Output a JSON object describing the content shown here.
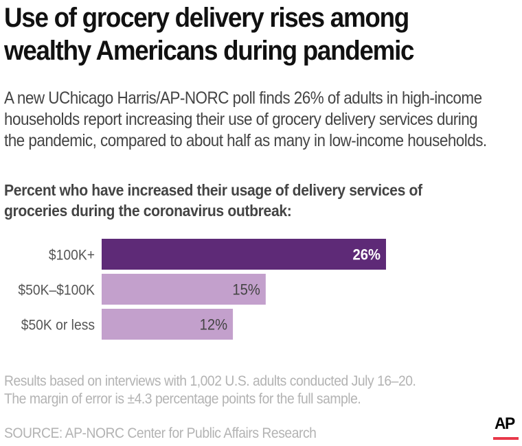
{
  "title_lines": [
    "Use of grocery delivery rises among",
    "wealthy Americans during pandemic"
  ],
  "subtitle_lines": [
    "A new UChicago Harris/AP-NORC poll finds 26% of adults in high-income",
    "households report increasing their use of grocery delivery services during",
    "the pandemic, compared to about half as many in low-income households."
  ],
  "chart_heading_lines": [
    "Percent who have increased their usage of delivery services of",
    "groceries during the coronavirus outbreak:"
  ],
  "chart_data": {
    "type": "bar",
    "orientation": "horizontal",
    "title": "Percent who have increased their usage of delivery services of groceries during the coronavirus outbreak:",
    "categories": [
      "$100K+",
      "$50K–$100K",
      "$50K or less"
    ],
    "values": [
      26,
      15,
      12
    ],
    "value_labels": [
      "26%",
      "15%",
      "12%"
    ],
    "unit": "%",
    "xlabel": "",
    "ylabel": "",
    "xlim": [
      0,
      26
    ],
    "grid": false,
    "legend": "none",
    "colors": [
      "#5E2A77",
      "#C3A0CC",
      "#C3A0CC"
    ],
    "label_colors": [
      "#FFFFFF",
      "#444444",
      "#444444"
    ],
    "highlight_index": 0
  },
  "note_lines": [
    "Results based on interviews with 1,002 U.S. adults conducted July 16–20.",
    "The margin of error is ±4.3 percentage points for the full sample."
  ],
  "source": "SOURCE: AP-NORC Center for Public Affairs Research",
  "logo": {
    "text": "AP",
    "icon": "ap-logo-icon",
    "accent_color": "#E8394A"
  }
}
